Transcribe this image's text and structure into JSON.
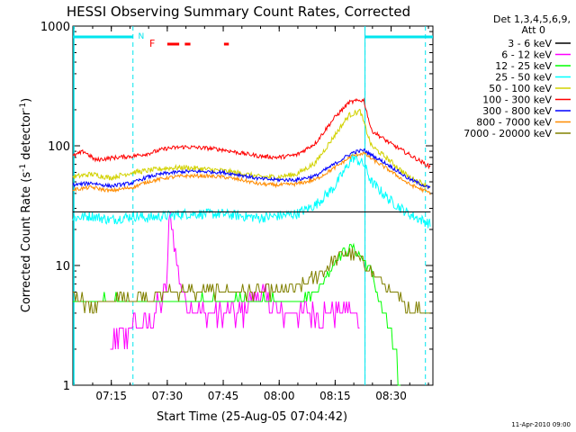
{
  "chart_data": {
    "type": "line",
    "title": "HESSI Observing Summary Count Rates, Corrected",
    "xlabel": "Start Time (25-Aug-05 07:04:42)",
    "ylabel_main": "Corrected Count Rate (s",
    "ylabel_mid": " detector",
    "ylabel_end": ")",
    "ylabel_sup": "-1",
    "yscale": "log",
    "ylim": [
      1,
      1000
    ],
    "xlim_minutes": [
      0,
      96.5
    ],
    "x_ticks": [
      {
        "label": "07:15",
        "min": 10.3
      },
      {
        "label": "07:30",
        "min": 25.3
      },
      {
        "label": "07:45",
        "min": 40.3
      },
      {
        "label": "08:00",
        "min": 55.3
      },
      {
        "label": "08:15",
        "min": 70.3
      },
      {
        "label": "08:30",
        "min": 85.3
      }
    ],
    "y_ticks": [
      {
        "label": "1",
        "value": 1
      },
      {
        "label": "10",
        "value": 10
      },
      {
        "label": "100",
        "value": 100
      },
      {
        "label": "1000",
        "value": 1000
      }
    ],
    "legend_title": [
      "Det 1,3,4,5,6,9,",
      "Att 0"
    ],
    "legend_placement": "right",
    "annotations": {
      "night_label": "N",
      "flare_label": "F",
      "saa_markers_min": [
        16.1,
        78.3
      ],
      "night_intervals_min": [
        [
          0,
          16.1
        ],
        [
          78.3,
          96.5
        ]
      ],
      "flare_intervals_min": [
        [
          25.3,
          28.5
        ],
        [
          30.0,
          31.5
        ],
        [
          40.5,
          41.8
        ]
      ]
    },
    "colors": {
      "night": "#00e5ee",
      "flare": "#ff0000",
      "axes": "#000000"
    },
    "series": [
      {
        "name": "3 - 6 keV",
        "color": "#000000",
        "x": [
          0,
          5,
          10,
          16,
          20,
          25,
          30,
          35,
          40,
          45,
          50,
          55,
          60,
          65,
          70,
          75,
          78,
          80,
          85,
          90,
          96
        ],
        "y": [
          47,
          49,
          46,
          47,
          53,
          57,
          59,
          60,
          59,
          56,
          52,
          51,
          51,
          55,
          68,
          88,
          90,
          83,
          67,
          52,
          43
        ]
      },
      {
        "name": "6 - 12 keV",
        "color": "#ff00ff",
        "x": [
          10,
          16,
          20,
          22,
          25,
          26,
          28,
          30,
          35,
          40,
          45,
          50,
          55,
          60,
          65,
          70,
          72,
          75,
          77
        ],
        "y": [
          2,
          3,
          3,
          4,
          6,
          28,
          10,
          5,
          4,
          4,
          4,
          6,
          4,
          4,
          4,
          4,
          4,
          4,
          3
        ]
      },
      {
        "name": "12 - 25 keV",
        "color": "#00ff00",
        "x": [
          0,
          10,
          16,
          20,
          25,
          30,
          35,
          40,
          45,
          50,
          55,
          60,
          65,
          68,
          71,
          73,
          75,
          77,
          80,
          83,
          86,
          88
        ],
        "y": [
          5,
          5,
          5,
          5,
          5,
          5,
          5,
          5,
          5,
          5,
          5,
          5,
          6,
          8,
          12,
          13,
          14,
          12,
          9,
          4,
          2,
          1
        ]
      },
      {
        "name": "25 - 50 keV",
        "color": "#00ffff",
        "x": [
          0,
          5,
          10,
          16,
          20,
          25,
          30,
          35,
          40,
          45,
          50,
          55,
          60,
          65,
          70,
          75,
          78,
          80,
          85,
          90,
          96
        ],
        "y": [
          25,
          26,
          24,
          26,
          25,
          26,
          27,
          27,
          27,
          26,
          25,
          26,
          27,
          32,
          45,
          80,
          70,
          50,
          35,
          27,
          22
        ]
      },
      {
        "name": "50 - 100 keV",
        "color": "#d2d200",
        "x": [
          0,
          5,
          10,
          16,
          20,
          25,
          30,
          35,
          40,
          45,
          50,
          55,
          60,
          65,
          70,
          74,
          77,
          80,
          85,
          90,
          96
        ],
        "y": [
          55,
          58,
          54,
          60,
          62,
          65,
          66,
          64,
          62,
          59,
          55,
          55,
          58,
          72,
          120,
          180,
          195,
          100,
          75,
          55,
          45
        ]
      },
      {
        "name": "100 - 300 keV",
        "color": "#ff0000",
        "x": [
          0,
          3,
          6,
          10,
          16,
          20,
          25,
          30,
          35,
          40,
          45,
          50,
          55,
          60,
          65,
          70,
          74,
          77,
          78,
          80,
          85,
          90,
          96
        ],
        "y": [
          82,
          90,
          76,
          79,
          82,
          86,
          95,
          98,
          96,
          93,
          87,
          82,
          80,
          84,
          105,
          170,
          230,
          240,
          240,
          135,
          105,
          85,
          66
        ]
      },
      {
        "name": "300 - 800 keV",
        "color": "#0000ff",
        "x": [
          0,
          5,
          10,
          16,
          20,
          25,
          30,
          35,
          40,
          45,
          50,
          55,
          60,
          65,
          70,
          75,
          78,
          80,
          85,
          90,
          96
        ],
        "y": [
          47,
          49,
          46,
          49,
          55,
          59,
          61,
          61,
          60,
          57,
          53,
          52,
          52,
          56,
          70,
          88,
          92,
          84,
          68,
          53,
          44
        ]
      },
      {
        "name": "800 - 7000 keV",
        "color": "#ff8c00",
        "x": [
          0,
          5,
          10,
          16,
          20,
          25,
          30,
          35,
          40,
          45,
          50,
          55,
          60,
          65,
          70,
          75,
          78,
          80,
          85,
          90,
          96
        ],
        "y": [
          43,
          45,
          42,
          45,
          50,
          54,
          56,
          56,
          55,
          52,
          48,
          47,
          48,
          52,
          65,
          83,
          87,
          78,
          62,
          48,
          40
        ]
      },
      {
        "name": "7000 - 20000 keV",
        "color": "#808000",
        "x": [
          0,
          5,
          10,
          16,
          20,
          25,
          30,
          35,
          40,
          45,
          50,
          55,
          60,
          65,
          70,
          73,
          76,
          80,
          85,
          90,
          96
        ],
        "y": [
          6,
          4.5,
          5,
          5.5,
          5.5,
          6,
          6,
          6,
          6,
          6,
          6,
          6,
          6.5,
          8,
          11,
          13,
          12,
          9,
          6,
          4.5,
          4
        ]
      }
    ],
    "footer_date": "11-Apr-2010 09:00"
  }
}
